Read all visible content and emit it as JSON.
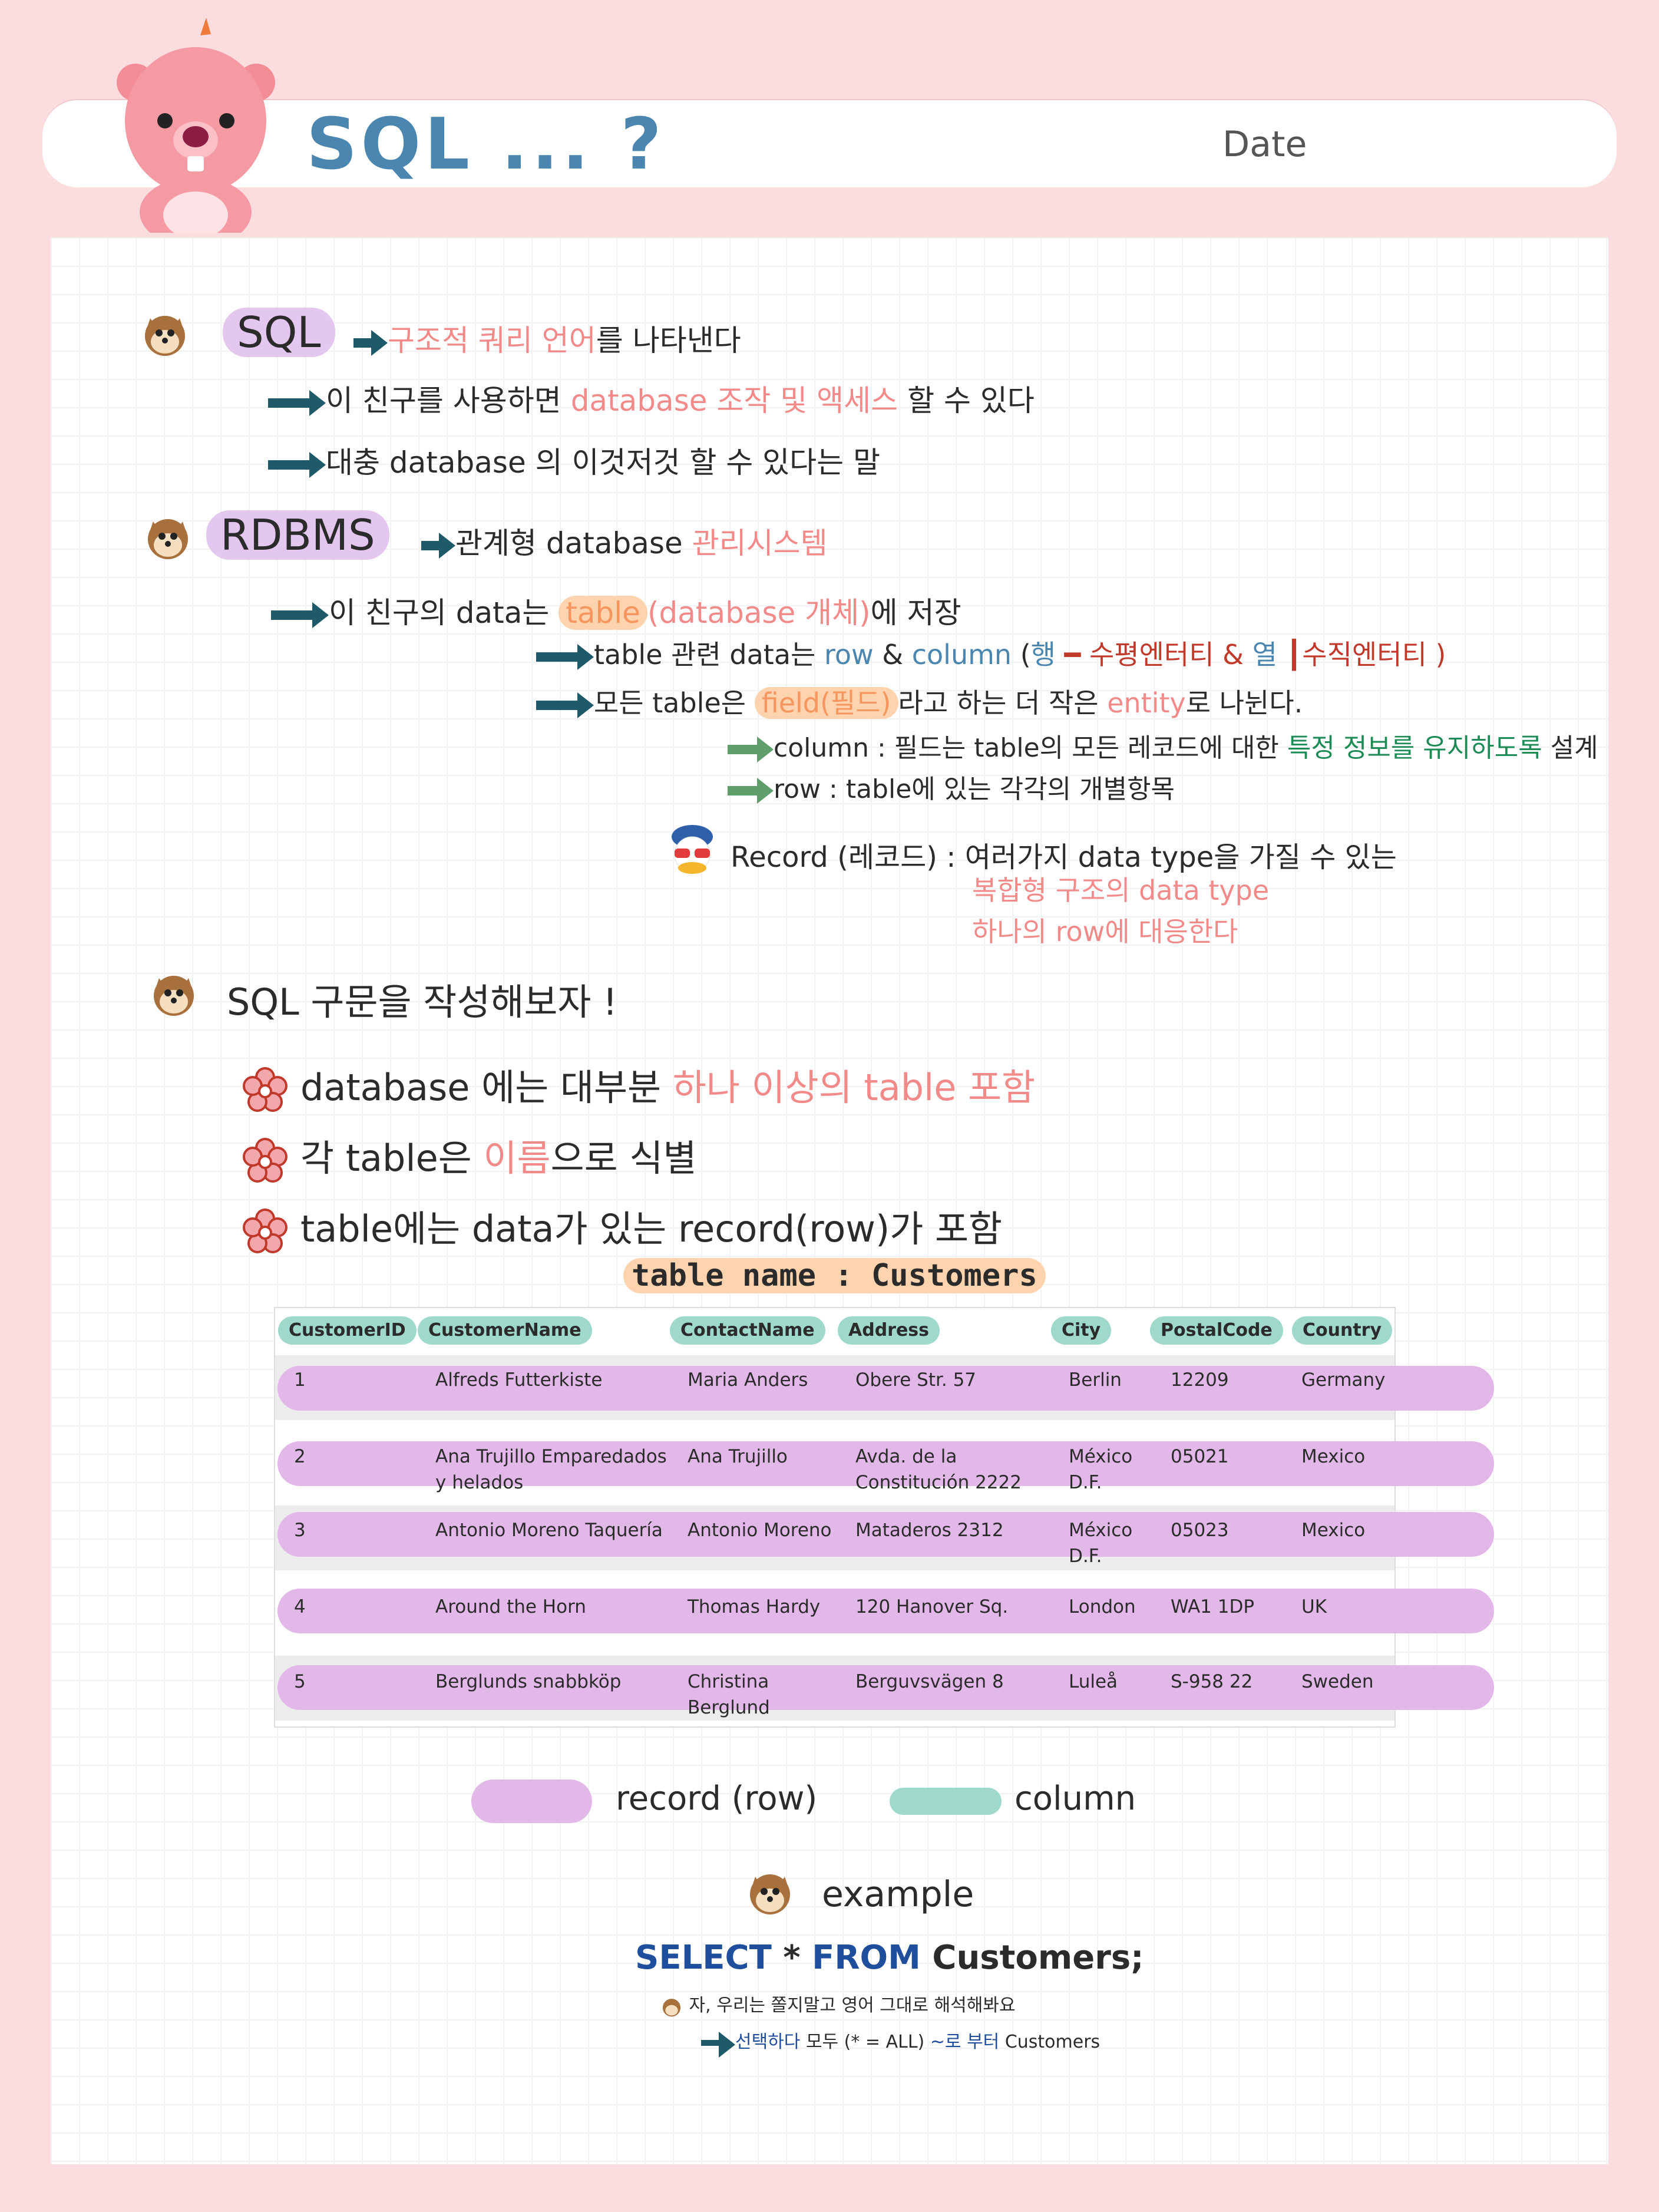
{
  "header": {
    "title": "SQL ... ?",
    "date_label": "Date"
  },
  "sql_section": {
    "term": "SQL",
    "definition_a": "구조적 쿼리 언어",
    "definition_b": "를 나타낸다",
    "line1_a": "이 친구를 사용하면 ",
    "line1_b": "database 조작 및 액세스",
    "line1_c": " 할 수 있다",
    "line2": "대충 database 의 이것저것 할 수 있다는 말"
  },
  "rdbms_section": {
    "term": "RDBMS",
    "definition_a": "관계형 database ",
    "definition_b": "관리시스템",
    "line1_a": "이 친구의 data는 ",
    "line1_b": "table",
    "line1_c": "(database 개체)",
    "line1_d": "에 저장",
    "line2_a": "table 관련 data는 ",
    "line2_b": "row",
    "line2_c": " & ",
    "line2_d": "column",
    "line2_e": " (",
    "line2_f": "행",
    "line2_g": " ━ 수평엔터티 & ",
    "line2_h": "열",
    "line2_i": " ┃수직엔터티 )",
    "line3_a": "모든 table은 ",
    "line3_b": "field(필드)",
    "line3_c": "라고 하는 더 작은 ",
    "line3_d": "entity",
    "line3_e": "로 나뉜다.",
    "col_a": "column : 필드는 table의 모든 레코드에 대한 ",
    "col_b": "특정 정보를 유지하도록",
    "col_c": " 설계",
    "row_line": "row : table에 있는 각각의 개별항목",
    "record_a": "Record (레코드) : 여러가지 data type을 가질 수 있는",
    "record_b": "복합형 구조의 data type",
    "record_c": "하나의 row에 대응한다"
  },
  "syntax_section": {
    "heading": "SQL 구문을 작성해보자 !",
    "b1_a": "database 에는 대부분 ",
    "b1_b": "하나 이상의 table 포함",
    "b2_a": "각 table은 ",
    "b2_b": "이름",
    "b2_c": "으로 식별",
    "b3": "table에는 data가 있는 record(row)가 포함"
  },
  "table": {
    "caption": "table name : Customers",
    "headers": [
      "CustomerID",
      "CustomerName",
      "ContactName",
      "Address",
      "City",
      "PostalCode",
      "Country"
    ],
    "rows": [
      [
        "1",
        "Alfreds Futterkiste",
        "Maria Anders",
        "Obere Str. 57",
        "Berlin",
        "12209",
        "Germany"
      ],
      [
        "2",
        "Ana Trujillo Emparedados y helados",
        "Ana Trujillo",
        "Avda. de la Constitución 2222",
        "México D.F.",
        "05021",
        "Mexico"
      ],
      [
        "3",
        "Antonio Moreno Taquería",
        "Antonio Moreno",
        "Mataderos 2312",
        "México D.F.",
        "05023",
        "Mexico"
      ],
      [
        "4",
        "Around the Horn",
        "Thomas Hardy",
        "120 Hanover Sq.",
        "London",
        "WA1 1DP",
        "UK"
      ],
      [
        "5",
        "Berglunds snabbköp",
        "Christina Berglund",
        "Berguvsvägen 8",
        "Luleå",
        "S-958 22",
        "Sweden"
      ]
    ]
  },
  "legend": {
    "record_label": "record (row)",
    "column_label": "column"
  },
  "example": {
    "label": "example",
    "sql_select": "SELECT",
    "sql_star": "*",
    "sql_from": "FROM",
    "sql_table": "Customers;",
    "note": "자, 우리는 쫄지말고 영어 그대로 해석해봐요",
    "trans_a": "선택하다",
    "trans_b": " 모두 (* = ALL) ",
    "trans_c": "~로 부터",
    "trans_d": " Customers"
  },
  "colors": {
    "accent_blue": "#4a86b0",
    "record_highlight": "#e2b8e8",
    "column_highlight": "#9fd9cc",
    "pink_text": "#f38a8a",
    "background": "#fbdde0"
  }
}
